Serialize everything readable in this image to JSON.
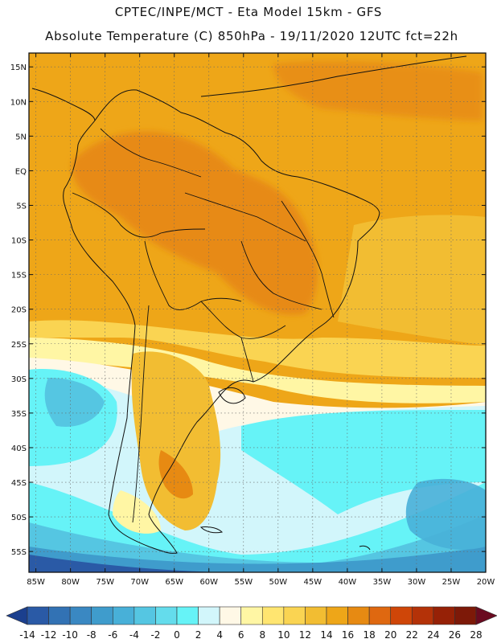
{
  "header": {
    "line1": "CPTEC/INPE/MCT -   Eta Model 15km - GFS",
    "line2": "Absolute Temperature (C) 850hPa - 19/11/2020 12UTC fct=22h"
  },
  "map": {
    "lon_range": [
      -86,
      -20
    ],
    "lat_range": [
      -58,
      17
    ],
    "lat_ticks": [
      {
        "value": 15,
        "label": "15N"
      },
      {
        "value": 10,
        "label": "10N"
      },
      {
        "value": 5,
        "label": "5N"
      },
      {
        "value": 0,
        "label": "EQ"
      },
      {
        "value": -5,
        "label": "5S"
      },
      {
        "value": -10,
        "label": "10S"
      },
      {
        "value": -15,
        "label": "15S"
      },
      {
        "value": -20,
        "label": "20S"
      },
      {
        "value": -25,
        "label": "25S"
      },
      {
        "value": -30,
        "label": "30S"
      },
      {
        "value": -35,
        "label": "35S"
      },
      {
        "value": -40,
        "label": "40S"
      },
      {
        "value": -45,
        "label": "45S"
      },
      {
        "value": -50,
        "label": "50S"
      },
      {
        "value": -55,
        "label": "55S"
      }
    ],
    "lon_ticks": [
      {
        "value": -85,
        "label": "85W"
      },
      {
        "value": -80,
        "label": "80W"
      },
      {
        "value": -75,
        "label": "75W"
      },
      {
        "value": -70,
        "label": "70W"
      },
      {
        "value": -65,
        "label": "65W"
      },
      {
        "value": -60,
        "label": "60W"
      },
      {
        "value": -55,
        "label": "55W"
      },
      {
        "value": -50,
        "label": "50W"
      },
      {
        "value": -45,
        "label": "45W"
      },
      {
        "value": -40,
        "label": "40W"
      },
      {
        "value": -35,
        "label": "35W"
      },
      {
        "value": -30,
        "label": "30W"
      },
      {
        "value": -25,
        "label": "25W"
      },
      {
        "value": -20,
        "label": "20W"
      }
    ],
    "grid": true
  },
  "colorbar": {
    "labels": [
      "-14",
      "-12",
      "-10",
      "-8",
      "-6",
      "-4",
      "-2",
      "0",
      "2",
      "4",
      "6",
      "8",
      "10",
      "12",
      "14",
      "16",
      "18",
      "20",
      "22",
      "24",
      "26",
      "28"
    ],
    "colors": [
      "#1b3f8e",
      "#2a5aa6",
      "#3272b4",
      "#3a88c2",
      "#3f9ccc",
      "#48b0d8",
      "#55c6e2",
      "#64dcec",
      "#66f3f7",
      "#d2f6fb",
      "#fff8e6",
      "#fff6a4",
      "#ffe570",
      "#fad452",
      "#f2bd32",
      "#eea618",
      "#e78a12",
      "#df6810",
      "#cf4608",
      "#b43208",
      "#962106",
      "#7d1908",
      "#6a0a20"
    ]
  }
}
